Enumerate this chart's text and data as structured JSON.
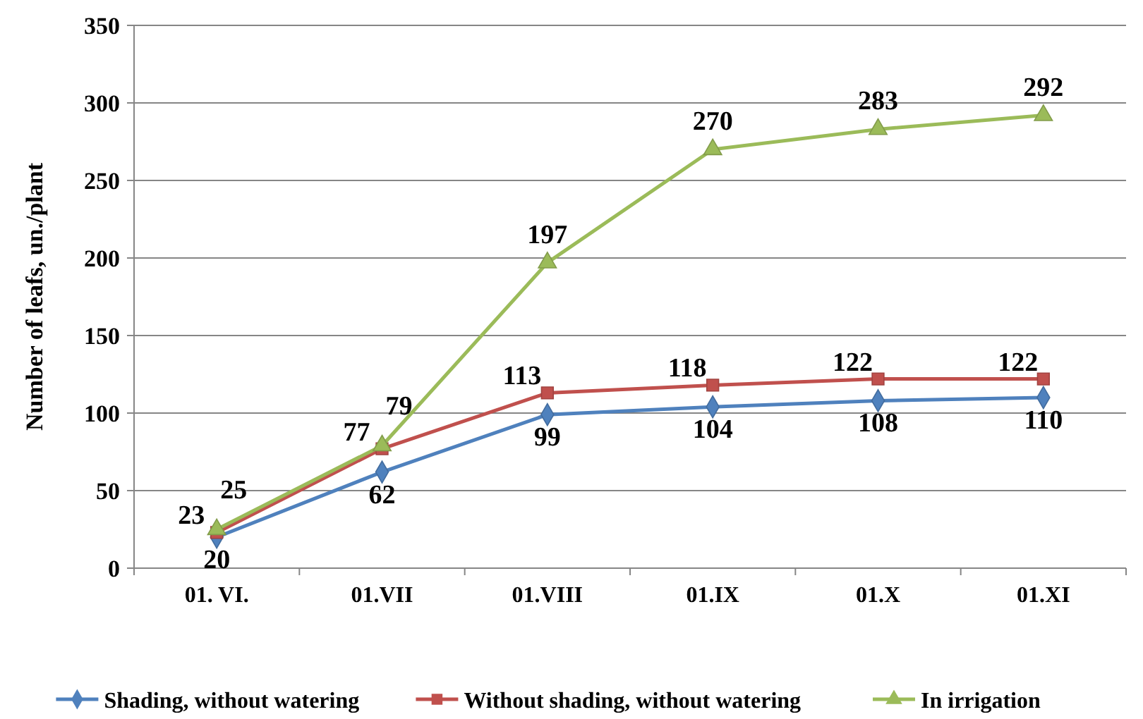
{
  "chart_data": {
    "type": "line",
    "ylabel": "Number of leafs, un./plant",
    "categories": [
      "01. VI.",
      "01.VII",
      "01.VIII",
      "01.IX",
      "01.X",
      "01.XI"
    ],
    "series": [
      {
        "name": "Shading, without watering",
        "color": "#4f81bd",
        "marker": "diamond",
        "values": [
          20,
          62,
          99,
          104,
          108,
          110
        ]
      },
      {
        "name": "Without shading, without watering",
        "color": "#c0504d",
        "marker": "square",
        "values": [
          23,
          77,
          113,
          118,
          122,
          122
        ]
      },
      {
        "name": "In irrigation",
        "color": "#9bbb59",
        "marker": "triangle",
        "values": [
          25,
          79,
          197,
          270,
          283,
          292
        ]
      }
    ],
    "ylim": [
      0,
      350
    ],
    "yticks": [
      0,
      50,
      100,
      150,
      200,
      250,
      300,
      350
    ],
    "grid": "y",
    "legend": "bottom",
    "data_labels": true
  }
}
